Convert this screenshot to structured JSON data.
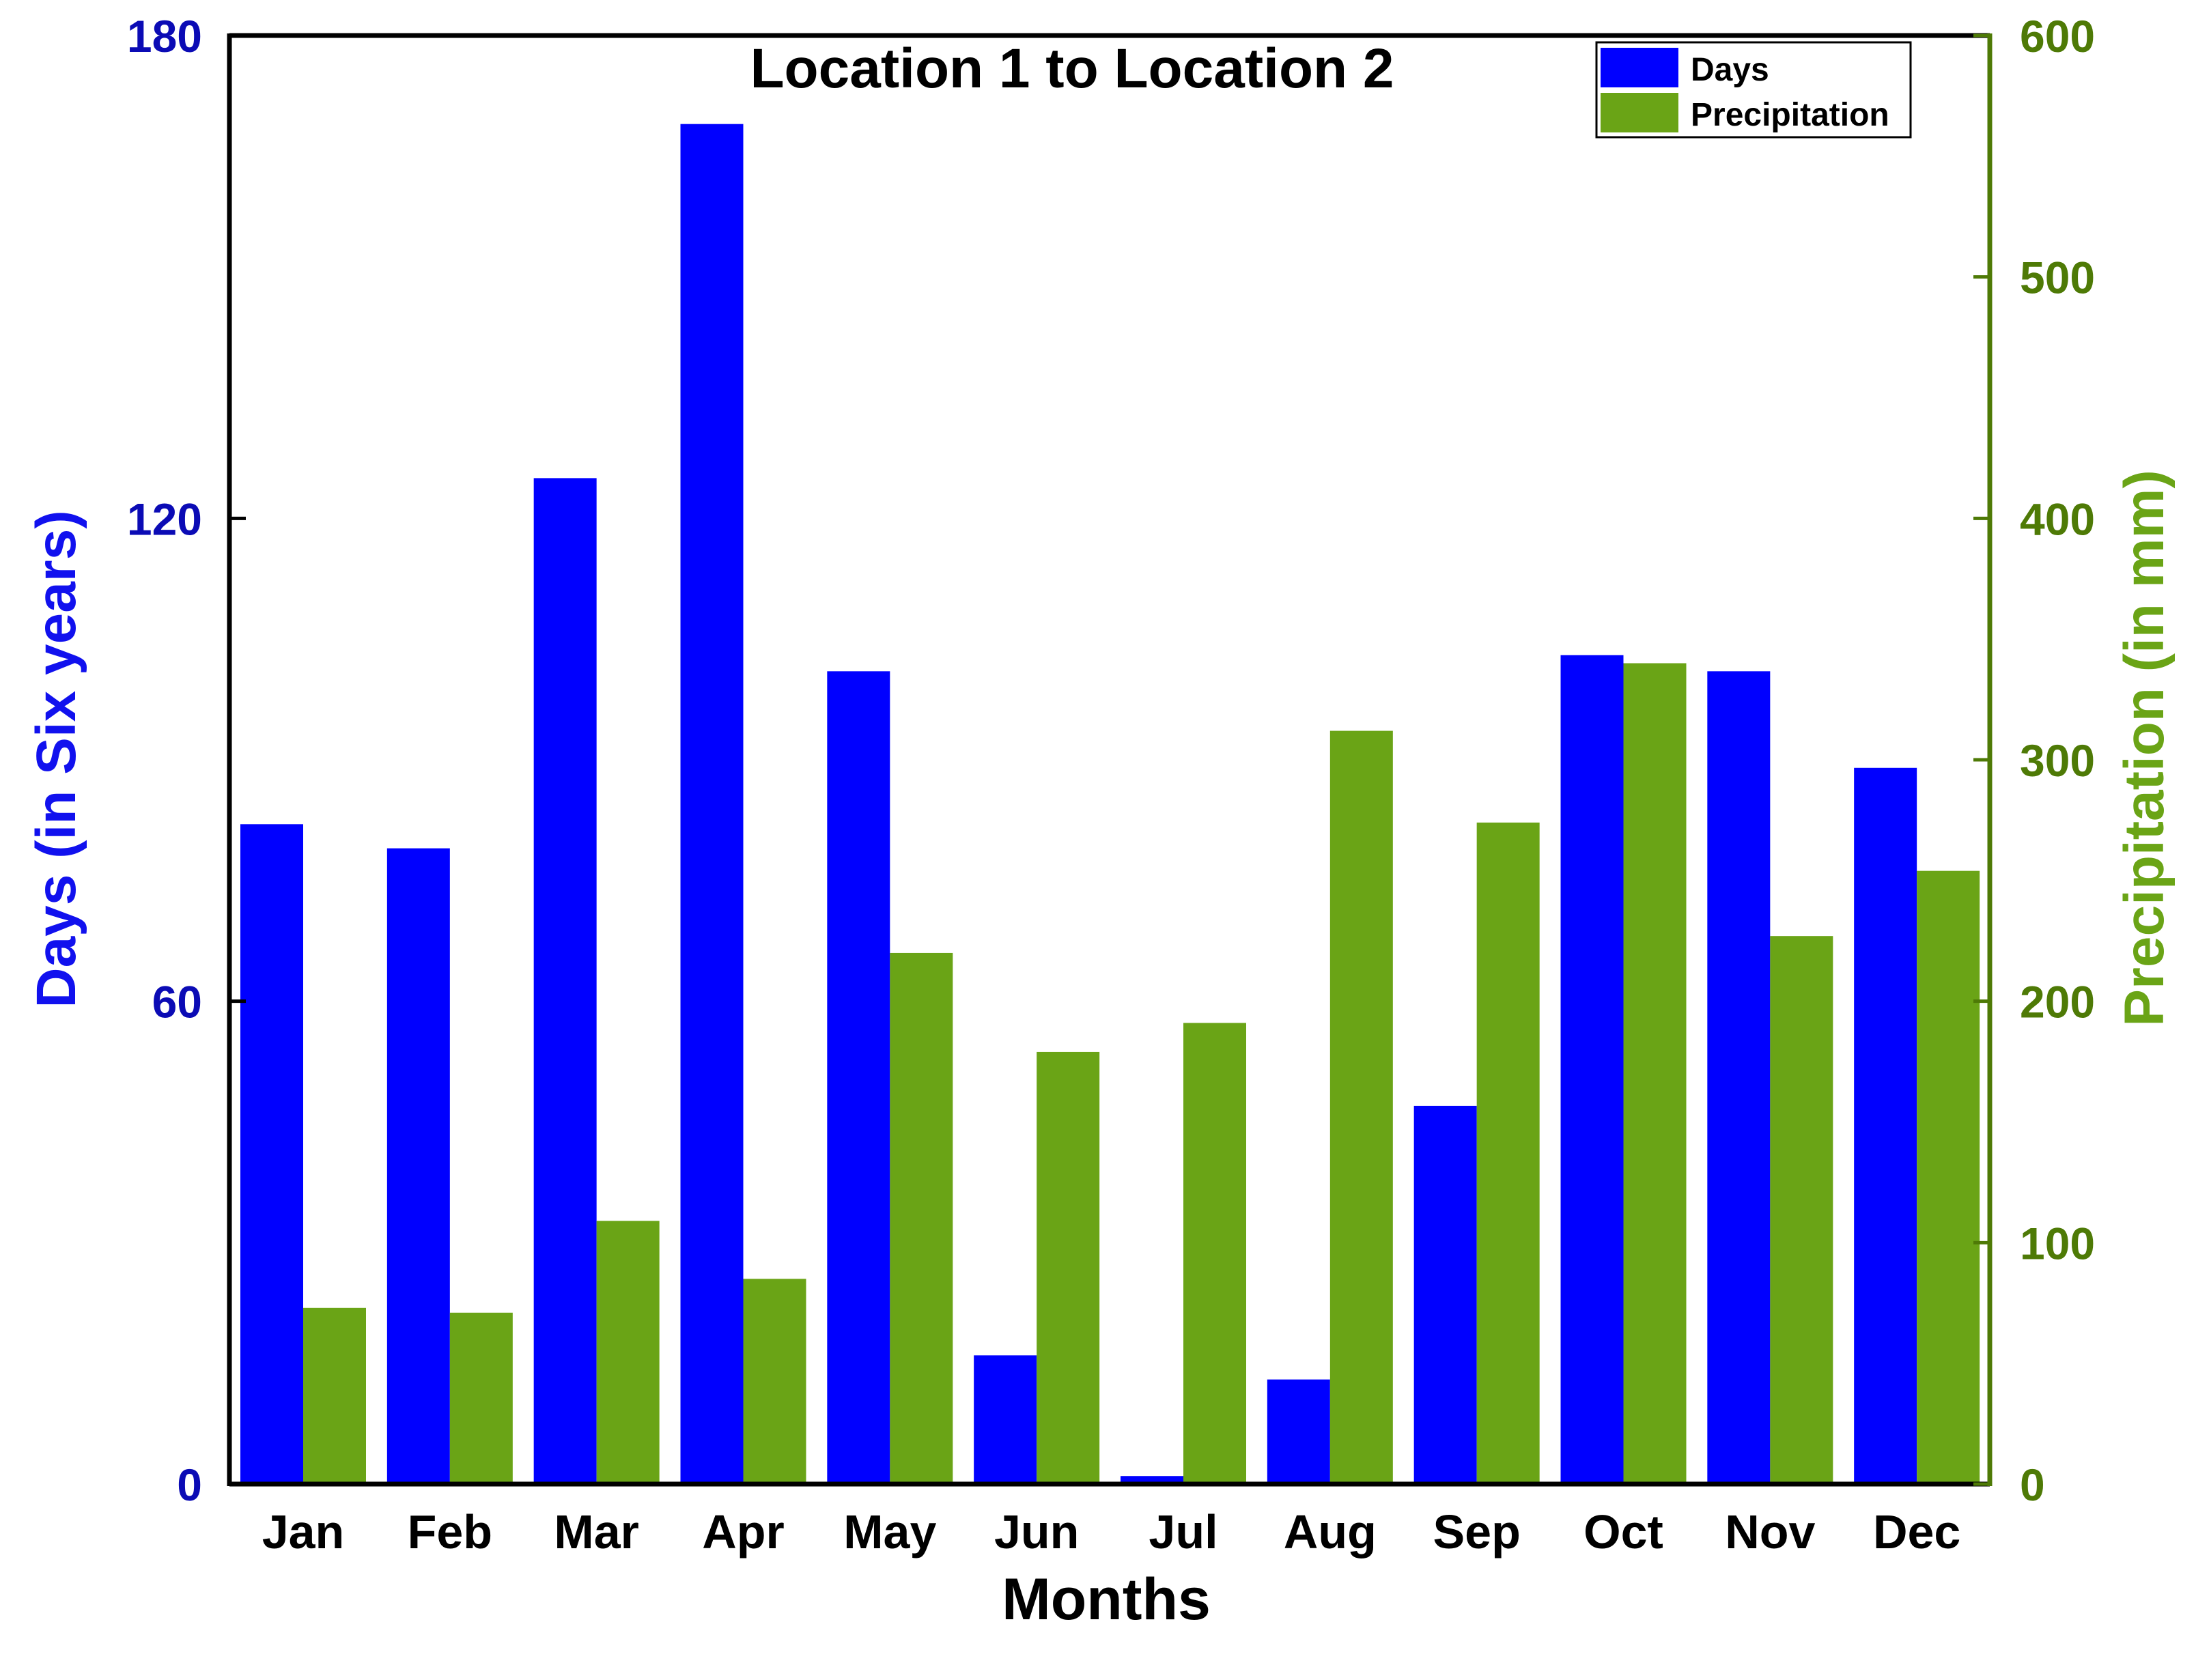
{
  "colors": {
    "days": "#0000ff",
    "precipitation": "#6aa416",
    "left_axis_text": "#0b0bb5",
    "left_axis_label": "#1111ee",
    "right_axis_text": "#4e7a06",
    "right_axis_label": "#6aa416",
    "axis_line": "#000000",
    "right_axis_line": "#4e7a06"
  },
  "chart_data": {
    "type": "bar",
    "title": "Location 1 to Location 2",
    "xlabel": "Months",
    "ylabel_left": "Days (in Six years)",
    "ylabel_right": "Precipitation (in mm)",
    "categories": [
      "Jan",
      "Feb",
      "Mar",
      "Apr",
      "May",
      "Jun",
      "Jul",
      "Aug",
      "Sep",
      "Oct",
      "Nov",
      "Dec"
    ],
    "ylim_left": [
      0,
      180
    ],
    "yticks_left": [
      "0",
      "60",
      "120",
      "180"
    ],
    "ylim_right": [
      0,
      600
    ],
    "yticks_right": [
      "0",
      "100",
      "200",
      "300",
      "400",
      "500",
      "600"
    ],
    "grid": false,
    "legend_position": "top-right",
    "series": [
      {
        "name": "Days",
        "axis": "left",
        "values": [
          82,
          79,
          125,
          169,
          101,
          16,
          1,
          13,
          47,
          103,
          101,
          89
        ]
      },
      {
        "name": "Precipitation",
        "axis": "right",
        "values": [
          73,
          71,
          109,
          85,
          220,
          179,
          191,
          312,
          274,
          340,
          227,
          254
        ]
      }
    ]
  }
}
